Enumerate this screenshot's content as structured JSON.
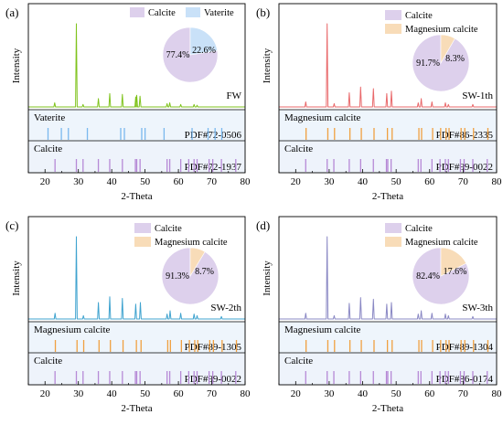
{
  "chart_data": [
    {
      "type": "line",
      "panel_label": "(a)",
      "xlabel": "2-Theta",
      "ylabel": "Intensity",
      "xlim": [
        15,
        80
      ],
      "xticks": [
        20,
        30,
        40,
        50,
        60,
        70,
        80
      ],
      "sample_label": "FW",
      "sample_color": "#7fc31c",
      "pattern": [
        [
          22.9,
          0.05
        ],
        [
          29.4,
          1.0
        ],
        [
          31.4,
          0.03
        ],
        [
          36.0,
          0.1
        ],
        [
          39.4,
          0.16
        ],
        [
          43.2,
          0.15
        ],
        [
          47.2,
          0.12
        ],
        [
          47.5,
          0.14
        ],
        [
          48.5,
          0.13
        ],
        [
          56.6,
          0.04
        ],
        [
          57.4,
          0.05
        ],
        [
          60.7,
          0.03
        ],
        [
          64.7,
          0.03
        ],
        [
          65.6,
          0.02
        ]
      ],
      "pie": {
        "legend_position": "top",
        "slices": [
          {
            "label": "Calcite",
            "value": 77.4,
            "text": "77.4%",
            "color": "#ddd0ec"
          },
          {
            "label": "Vaterite",
            "value": 22.6,
            "text": "22.6%",
            "color": "#c9e1f8"
          }
        ]
      },
      "references": [
        {
          "name": "Vaterite",
          "pdf": "PDF#72-0506",
          "color": "#7ab8ee",
          "peaks": [
            20.9,
            24.9,
            27.0,
            32.7,
            42.7,
            43.8,
            49.0,
            50.0,
            55.7,
            64.1,
            68.9,
            71.0,
            73.0
          ]
        },
        {
          "name": "Calcite",
          "pdf": "PDF#72-1937",
          "color": "#b689d6",
          "peaks": [
            23.0,
            29.4,
            31.4,
            36.0,
            39.4,
            43.2,
            47.1,
            47.5,
            48.5,
            56.6,
            57.4,
            60.7,
            63.1,
            64.7,
            65.6,
            69.2,
            70.3,
            72.9,
            77.2
          ]
        }
      ]
    },
    {
      "type": "line",
      "panel_label": "(b)",
      "xlabel": "2-Theta",
      "ylabel": "Intensity",
      "xlim": [
        15,
        80
      ],
      "xticks": [
        20,
        30,
        40,
        50,
        60,
        70,
        80
      ],
      "sample_label": "SW-1th",
      "sample_color": "#e9696b",
      "pattern": [
        [
          23.0,
          0.06
        ],
        [
          29.4,
          1.0
        ],
        [
          31.5,
          0.04
        ],
        [
          36.0,
          0.17
        ],
        [
          39.4,
          0.24
        ],
        [
          43.2,
          0.22
        ],
        [
          47.2,
          0.16
        ],
        [
          48.6,
          0.19
        ],
        [
          56.6,
          0.05
        ],
        [
          57.5,
          0.1
        ],
        [
          60.7,
          0.06
        ],
        [
          64.7,
          0.05
        ],
        [
          65.6,
          0.03
        ],
        [
          72.9,
          0.03
        ]
      ],
      "pie": {
        "legend_position": "right",
        "slices": [
          {
            "label": "Calcite",
            "value": 91.7,
            "text": "91.7%",
            "color": "#ddd0ec"
          },
          {
            "label": "Magnesium calcite",
            "value": 8.3,
            "text": "8.3%",
            "color": "#f8dcb8"
          }
        ]
      },
      "references": [
        {
          "name": "Magnesium calcite",
          "pdf": "PDF#86-2335",
          "color": "#f0a040",
          "peaks": [
            23.1,
            29.6,
            31.6,
            36.2,
            39.6,
            43.4,
            47.4,
            48.8,
            56.8,
            57.6,
            60.9,
            63.3,
            64.9,
            65.8,
            69.4,
            70.5,
            73.1,
            77.4
          ]
        },
        {
          "name": "Calcite",
          "pdf": "PDF#99-0022",
          "color": "#b689d6",
          "peaks": [
            23.0,
            29.4,
            31.4,
            36.0,
            39.4,
            43.2,
            47.1,
            47.5,
            48.5,
            56.6,
            57.4,
            60.7,
            63.1,
            64.7,
            65.6,
            69.2,
            70.3,
            72.9,
            77.2
          ]
        }
      ]
    },
    {
      "type": "line",
      "panel_label": "(c)",
      "xlabel": "2-Theta",
      "ylabel": "Intensity",
      "xlim": [
        15,
        80
      ],
      "xticks": [
        20,
        30,
        40,
        50,
        60,
        70,
        80
      ],
      "sample_label": "SW-2th",
      "sample_color": "#3fa3cf",
      "pattern": [
        [
          23.0,
          0.07
        ],
        [
          29.4,
          1.0
        ],
        [
          31.5,
          0.04
        ],
        [
          36.0,
          0.2
        ],
        [
          39.4,
          0.27
        ],
        [
          43.2,
          0.25
        ],
        [
          47.2,
          0.18
        ],
        [
          48.6,
          0.2
        ],
        [
          56.6,
          0.06
        ],
        [
          57.5,
          0.1
        ],
        [
          60.7,
          0.07
        ],
        [
          64.7,
          0.06
        ],
        [
          65.6,
          0.04
        ],
        [
          72.9,
          0.03
        ]
      ],
      "pie": {
        "legend_position": "right",
        "slices": [
          {
            "label": "Calcite",
            "value": 91.3,
            "text": "91.3%",
            "color": "#ddd0ec"
          },
          {
            "label": "Magnesium calcite",
            "value": 8.7,
            "text": "8.7%",
            "color": "#f8dcb8"
          }
        ]
      },
      "references": [
        {
          "name": "Magnesium calcite",
          "pdf": "PDF#89-1305",
          "color": "#f0a040",
          "peaks": [
            23.1,
            29.6,
            31.6,
            36.2,
            39.6,
            43.4,
            47.4,
            48.8,
            56.8,
            57.6,
            60.9,
            63.3,
            64.9,
            65.8,
            69.4,
            70.5,
            73.1,
            77.4
          ]
        },
        {
          "name": "Calcite",
          "pdf": "PDF#99-0022",
          "color": "#b689d6",
          "peaks": [
            23.0,
            29.4,
            31.4,
            36.0,
            39.4,
            43.2,
            47.1,
            47.5,
            48.5,
            56.6,
            57.4,
            60.7,
            63.1,
            64.7,
            65.6,
            69.2,
            70.3,
            72.9,
            77.2
          ]
        }
      ]
    },
    {
      "type": "line",
      "panel_label": "(d)",
      "xlabel": "2-Theta",
      "ylabel": "Intensity",
      "xlim": [
        15,
        80
      ],
      "xticks": [
        20,
        30,
        40,
        50,
        60,
        70,
        80
      ],
      "sample_label": "SW-3th",
      "sample_color": "#8a88c4",
      "pattern": [
        [
          23.0,
          0.07
        ],
        [
          29.4,
          1.0
        ],
        [
          31.5,
          0.04
        ],
        [
          36.0,
          0.19
        ],
        [
          39.4,
          0.26
        ],
        [
          43.2,
          0.24
        ],
        [
          47.2,
          0.18
        ],
        [
          48.6,
          0.2
        ],
        [
          56.6,
          0.06
        ],
        [
          57.5,
          0.1
        ],
        [
          60.7,
          0.07
        ],
        [
          64.7,
          0.06
        ],
        [
          65.6,
          0.04
        ],
        [
          72.9,
          0.03
        ]
      ],
      "pie": {
        "legend_position": "right",
        "slices": [
          {
            "label": "Calcite",
            "value": 82.4,
            "text": "82.4%",
            "color": "#ddd0ec"
          },
          {
            "label": "Magnesium calcite",
            "value": 17.6,
            "text": "17.6%",
            "color": "#f8dcb8"
          }
        ]
      },
      "references": [
        {
          "name": "Magnesium calcite",
          "pdf": "PDF#89-1304",
          "color": "#f0a040",
          "peaks": [
            23.1,
            29.6,
            31.6,
            36.2,
            39.6,
            43.4,
            47.4,
            48.8,
            56.8,
            57.6,
            60.9,
            63.3,
            64.9,
            65.8,
            69.4,
            70.5,
            73.1,
            77.4
          ]
        },
        {
          "name": "Calcite",
          "pdf": "PDF#86-0174",
          "color": "#b689d6",
          "peaks": [
            23.0,
            29.4,
            31.4,
            36.0,
            39.4,
            43.2,
            47.1,
            47.5,
            48.5,
            56.6,
            57.4,
            60.7,
            63.1,
            64.7,
            65.6,
            69.2,
            70.3,
            72.9,
            77.2
          ]
        }
      ]
    }
  ]
}
